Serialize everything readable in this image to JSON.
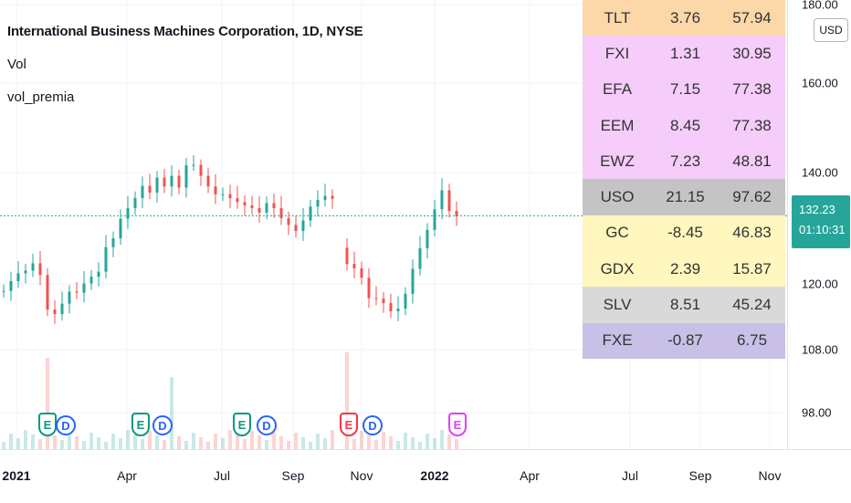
{
  "legend": {
    "title": "International Business Machines Corporation, 1D, NYSE",
    "line2": "Vol",
    "line3": "vol_premia"
  },
  "price_axis": {
    "currency_button": "USD",
    "ticks": [
      "180.00",
      "160.00",
      "140.00",
      "120.00",
      "108.00",
      "98.00"
    ],
    "last_price": "132.23",
    "countdown": "01:10:31"
  },
  "time_axis": {
    "ticks": [
      {
        "label": "2021",
        "bold": true
      },
      {
        "label": "Apr",
        "bold": false
      },
      {
        "label": "Jul",
        "bold": false
      },
      {
        "label": "Sep",
        "bold": false
      },
      {
        "label": "Nov",
        "bold": false
      },
      {
        "label": "2022",
        "bold": true
      },
      {
        "label": "Apr",
        "bold": false
      },
      {
        "label": "Jul",
        "bold": false
      },
      {
        "label": "Sep",
        "bold": false
      },
      {
        "label": "Nov",
        "bold": false
      }
    ]
  },
  "vol_premia_table": [
    {
      "symbol": "TLT",
      "a": "3.76",
      "b": "57.94",
      "bg": "#fcd8a8"
    },
    {
      "symbol": "FXI",
      "a": "1.31",
      "b": "30.95",
      "bg": "#f5ccfa"
    },
    {
      "symbol": "EFA",
      "a": "7.15",
      "b": "77.38",
      "bg": "#f5ccfa"
    },
    {
      "symbol": "EEM",
      "a": "8.45",
      "b": "77.38",
      "bg": "#f5ccfa"
    },
    {
      "symbol": "EWZ",
      "a": "7.23",
      "b": "48.81",
      "bg": "#f5ccfa"
    },
    {
      "symbol": "USO",
      "a": "21.15",
      "b": "97.62",
      "bg": "#c4c4c4"
    },
    {
      "symbol": "GC",
      "a": "-8.45",
      "b": "46.83",
      "bg": "#fff7bd"
    },
    {
      "symbol": "GDX",
      "a": "2.39",
      "b": "15.87",
      "bg": "#fff7bd"
    },
    {
      "symbol": "SLV",
      "a": "8.51",
      "b": "45.24",
      "bg": "#d9d9d9"
    },
    {
      "symbol": "FXE",
      "a": "-0.87",
      "b": "6.75",
      "bg": "#c8c0e6"
    }
  ],
  "events": [
    {
      "type": "earnings",
      "label": "E",
      "color": "#089981"
    },
    {
      "type": "dividend",
      "label": "D",
      "color": "#2962ff"
    },
    {
      "type": "earnings",
      "label": "E",
      "color": "#089981"
    },
    {
      "type": "dividend",
      "label": "D",
      "color": "#2962ff"
    },
    {
      "type": "earnings",
      "label": "E",
      "color": "#089981"
    },
    {
      "type": "dividend",
      "label": "D",
      "color": "#2962ff"
    },
    {
      "type": "earnings",
      "label": "E",
      "color": "#f23645"
    },
    {
      "type": "dividend",
      "label": "D",
      "color": "#2962ff"
    },
    {
      "type": "earnings",
      "label": "E",
      "color": "#e040fb"
    }
  ],
  "colors": {
    "up": "#26a69a",
    "down": "#ef5350",
    "price_line": "#26a69a"
  },
  "chart_data": {
    "type": "candlestick",
    "x_start": "2021-01",
    "x_end": "2022-01",
    "series": [
      {
        "name": "IBM",
        "close": [
          118.7,
          120.5,
          121.9,
          122.4,
          123.7,
          121.6,
          115.3,
          114.5,
          116.4,
          118.6,
          118.4,
          120.1,
          121.3,
          122.2,
          126.6,
          128.2,
          131.7,
          133.6,
          135.4,
          137.6,
          136.4,
          139.1,
          137.5,
          139.4,
          137.3,
          141.6,
          141.7,
          139.4,
          137.5,
          136.1,
          136.1,
          135.4,
          134.7,
          134.1,
          133.6,
          132.8,
          134.5,
          133.6,
          131.8,
          130.6,
          129.5,
          131.4,
          133.9,
          135.1,
          135.8,
          135.3,
          123.6,
          122.8,
          121.1,
          117.4,
          117.3,
          116.5,
          115.0,
          115.5,
          118.2,
          122.7,
          126.4,
          129.7,
          133.4,
          136.8,
          133.1,
          132.2
        ]
      }
    ],
    "ylabel": "",
    "ylim": [
      94.0,
      184.0
    ],
    "price_line": 132.23
  }
}
